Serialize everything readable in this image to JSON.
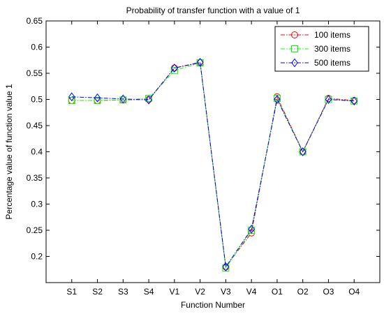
{
  "chart_data": {
    "type": "line",
    "title": "Probability of transfer function with a value of 1",
    "xlabel": "Function Number",
    "ylabel": "Percentage value of function value 1",
    "categories": [
      "S1",
      "S2",
      "S3",
      "S4",
      "V1",
      "V2",
      "V3",
      "V4",
      "O1",
      "O2",
      "O3",
      "O4"
    ],
    "ylim": [
      0.15,
      0.65
    ],
    "yticks": [
      0.2,
      0.25,
      0.3,
      0.35,
      0.4,
      0.45,
      0.5,
      0.55,
      0.6,
      0.65
    ],
    "ytick_labels": [
      "0.2",
      "0.25",
      "0.3",
      "0.35",
      "0.4",
      "0.45",
      "0.5",
      "0.55",
      "0.6",
      "0.65"
    ],
    "grid": false,
    "legend_position": "top-right",
    "series": [
      {
        "name": "100 items",
        "color": "#ff0000",
        "marker": "circle",
        "values": [
          0.498,
          0.498,
          0.499,
          0.5,
          0.56,
          0.57,
          0.18,
          0.245,
          0.505,
          0.4,
          0.502,
          0.498
        ]
      },
      {
        "name": "300 items",
        "color": "#00ff00",
        "marker": "square",
        "values": [
          0.498,
          0.498,
          0.499,
          0.502,
          0.555,
          0.57,
          0.178,
          0.25,
          0.502,
          0.4,
          0.5,
          0.497
        ]
      },
      {
        "name": "500 items",
        "color": "#0000ff",
        "marker": "diamond",
        "values": [
          0.505,
          0.503,
          0.501,
          0.499,
          0.56,
          0.571,
          0.18,
          0.252,
          0.5,
          0.4,
          0.5,
          0.497
        ]
      }
    ]
  }
}
